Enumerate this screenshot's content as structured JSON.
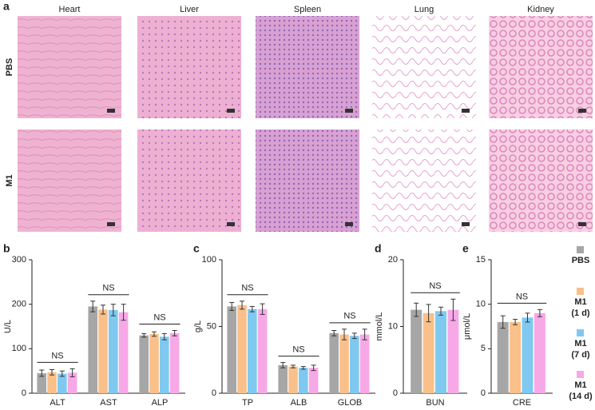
{
  "panel_a": {
    "label": "a",
    "columns": [
      "Heart",
      "Liver",
      "Spleen",
      "Lung",
      "Kidney"
    ],
    "rows": [
      "PBS",
      "M1"
    ]
  },
  "chart_data": [
    {
      "type": "bar",
      "panel": "b",
      "ylabel": "U/L",
      "categories": [
        "ALT",
        "AST",
        "ALP"
      ],
      "ylim": [
        0,
        300
      ],
      "yticks": [
        0,
        100,
        200,
        300
      ],
      "annotations": [
        "NS",
        "NS",
        "NS"
      ],
      "series": [
        {
          "color": "#a6a6a6",
          "values": [
            45,
            195,
            130
          ],
          "errors": [
            7,
            12,
            4
          ]
        },
        {
          "color": "#f9c08a",
          "values": [
            47,
            188,
            133
          ],
          "errors": [
            6,
            10,
            5
          ]
        },
        {
          "color": "#7fc9f0",
          "values": [
            44,
            187,
            127
          ],
          "errors": [
            6,
            13,
            7
          ]
        },
        {
          "color": "#f7a8e6",
          "values": [
            46,
            182,
            135
          ],
          "errors": [
            9,
            18,
            6
          ]
        }
      ]
    },
    {
      "type": "bar",
      "panel": "c",
      "ylabel": "g/L",
      "categories": [
        "TP",
        "ALB",
        "GLOB"
      ],
      "ylim": [
        0,
        100
      ],
      "yticks": [
        0,
        50,
        100
      ],
      "annotations": [
        "NS",
        "NS",
        "NS"
      ],
      "series": [
        {
          "color": "#a6a6a6",
          "values": [
            65,
            21,
            45
          ],
          "errors": [
            3,
            2,
            2
          ]
        },
        {
          "color": "#f9c08a",
          "values": [
            66,
            20,
            44
          ],
          "errors": [
            3,
            1,
            4
          ]
        },
        {
          "color": "#7fc9f0",
          "values": [
            63,
            19,
            43
          ],
          "errors": [
            2,
            1,
            2
          ]
        },
        {
          "color": "#f7a8e6",
          "values": [
            63,
            19,
            44
          ],
          "errors": [
            4,
            2,
            4
          ]
        }
      ]
    },
    {
      "type": "bar",
      "panel": "d",
      "ylabel": "mmol/L",
      "categories": [
        "BUN"
      ],
      "ylim": [
        0,
        20
      ],
      "yticks": [
        0,
        10,
        20
      ],
      "annotations": [
        "NS"
      ],
      "series": [
        {
          "color": "#a6a6a6",
          "values": [
            12.5
          ],
          "errors": [
            1
          ]
        },
        {
          "color": "#f9c08a",
          "values": [
            12
          ],
          "errors": [
            1.3
          ]
        },
        {
          "color": "#7fc9f0",
          "values": [
            12.3
          ],
          "errors": [
            0.6
          ]
        },
        {
          "color": "#f7a8e6",
          "values": [
            12.5
          ],
          "errors": [
            1.6
          ]
        }
      ]
    },
    {
      "type": "bar",
      "panel": "e",
      "ylabel": "μmol/L",
      "categories": [
        "CRE"
      ],
      "ylim": [
        0,
        15
      ],
      "yticks": [
        0,
        5,
        10,
        15
      ],
      "annotations": [
        "NS"
      ],
      "series": [
        {
          "name": "PBS",
          "color": "#a6a6a6",
          "values": [
            8
          ],
          "errors": [
            0.7
          ]
        },
        {
          "name": "M1 (1 d)",
          "color": "#f9c08a",
          "values": [
            8
          ],
          "errors": [
            0.3
          ]
        },
        {
          "name": "M1 (7 d)",
          "color": "#7fc9f0",
          "values": [
            8.5
          ],
          "errors": [
            0.5
          ]
        },
        {
          "name": "M1 (14 d)",
          "color": "#f7a8e6",
          "values": [
            9
          ],
          "errors": [
            0.4
          ]
        }
      ]
    }
  ]
}
